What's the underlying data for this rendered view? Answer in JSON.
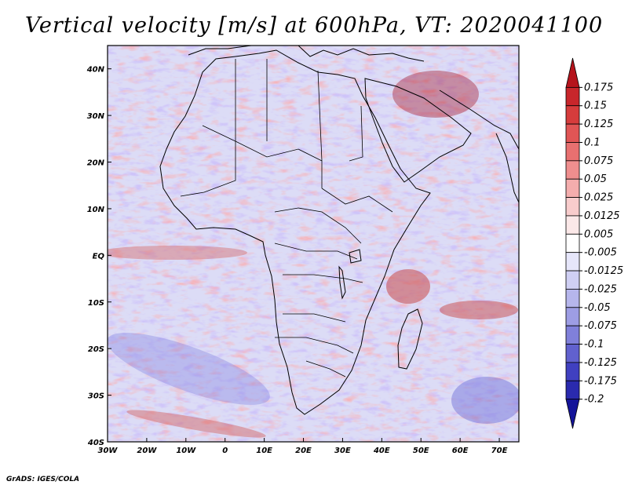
{
  "title": "Vertical velocity [m/s] at 600hPa, VT: 2020041100",
  "credit": "GrADS: IGES/COLA",
  "map": {
    "variable": "Vertical velocity",
    "units": "m/s",
    "level": "600hPa",
    "valid_time": "2020041100",
    "lon_range": [
      -30,
      75
    ],
    "lat_range": [
      -40,
      45
    ],
    "lon_ticks": [
      "30W",
      "20W",
      "10W",
      "0",
      "10E",
      "20E",
      "30E",
      "40E",
      "50E",
      "60E",
      "70E"
    ],
    "lon_tick_values": [
      -30,
      -20,
      -10,
      0,
      10,
      20,
      30,
      40,
      50,
      60,
      70
    ],
    "lat_ticks": [
      "40N",
      "30N",
      "20N",
      "10N",
      "EQ",
      "10S",
      "20S",
      "30S",
      "40S"
    ],
    "lat_tick_values": [
      40,
      30,
      20,
      10,
      0,
      -10,
      -20,
      -30,
      -40
    ]
  },
  "colorbar": {
    "labels": [
      "0.175",
      "0.15",
      "0.125",
      "0.1",
      "0.075",
      "0.05",
      "0.025",
      "0.0125",
      "0.005",
      "-0.005",
      "-0.0125",
      "-0.025",
      "-0.05",
      "-0.075",
      "-0.1",
      "-0.125",
      "-0.175",
      "-0.2"
    ],
    "colors": [
      "#b5141c",
      "#c8262b",
      "#d63c3c",
      "#e05555",
      "#e87070",
      "#ef8e8e",
      "#f4adad",
      "#f8cccc",
      "#fbe8e8",
      "#ffffff",
      "#e6e6fa",
      "#cfcff3",
      "#b6b6ec",
      "#9d9de4",
      "#8080da",
      "#6161ce",
      "#4040c0",
      "#2a2aae",
      "#141499"
    ]
  }
}
